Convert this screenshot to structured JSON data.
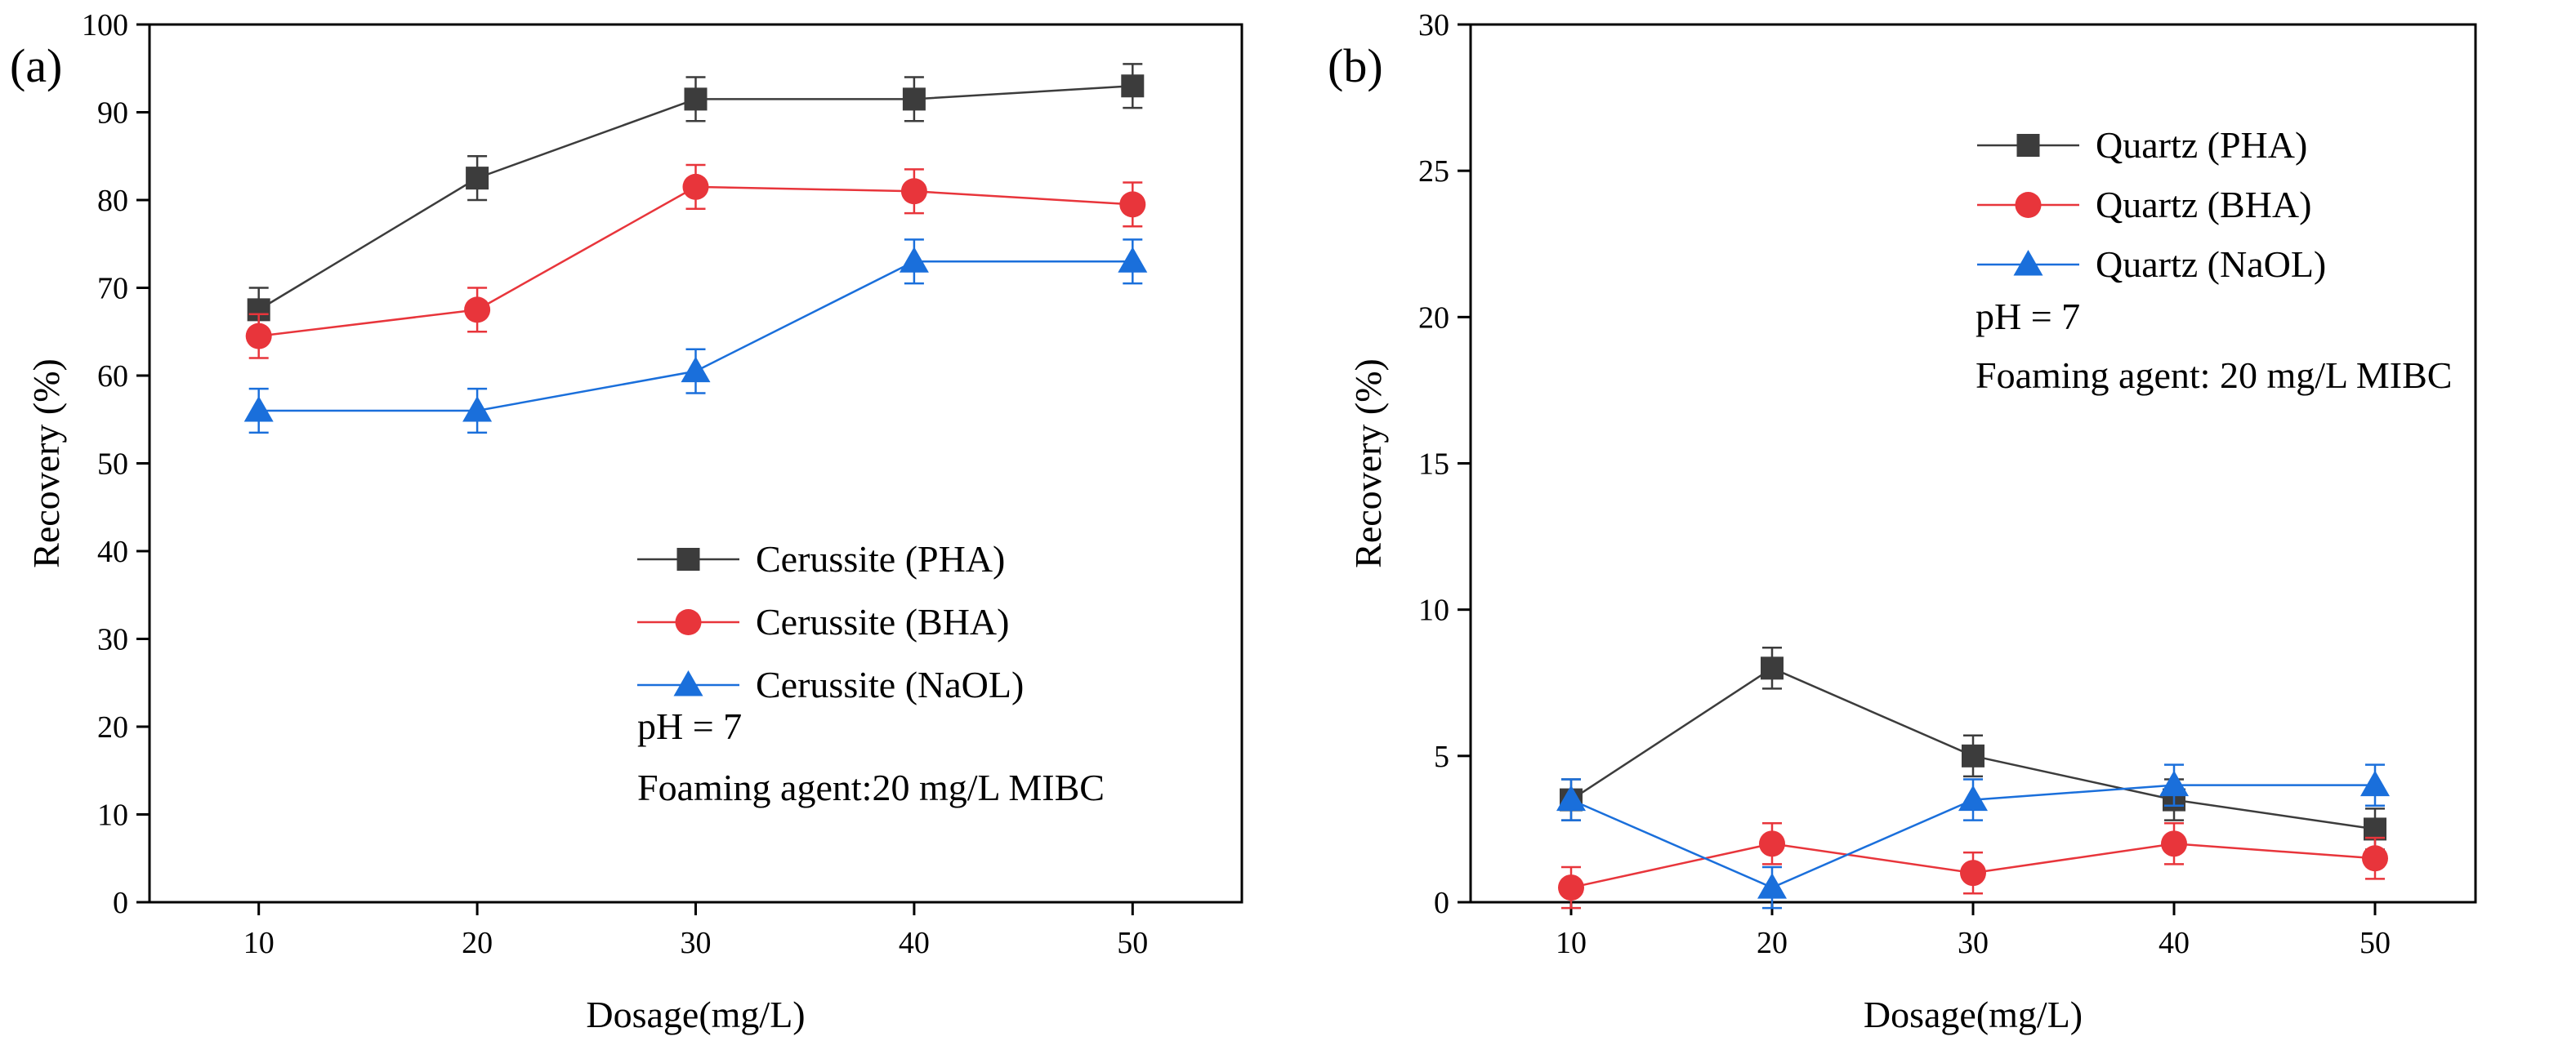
{
  "chart_data": [
    {
      "type": "line",
      "panel_label": "(a)",
      "xlabel": "Dosage(mg/L)",
      "ylabel": "Recovery (%)",
      "xlim": [
        5,
        55
      ],
      "ylim": [
        0,
        100
      ],
      "xticks": [
        10,
        20,
        30,
        40,
        50
      ],
      "yticks": [
        0,
        10,
        20,
        30,
        40,
        50,
        60,
        70,
        80,
        90,
        100
      ],
      "grid": false,
      "legend_position": "center-right",
      "annotations": [
        "pH = 7",
        "Foaming agent:20 mg/L MIBC"
      ],
      "x": [
        10,
        20,
        30,
        40,
        50
      ],
      "series": [
        {
          "name": "Cerussite (PHA)",
          "color": "#3c3c3c",
          "marker": "square",
          "values": [
            67.5,
            82.5,
            91.5,
            91.5,
            93.0
          ],
          "errors": [
            2.5,
            2.5,
            2.5,
            2.5,
            2.5
          ]
        },
        {
          "name": "Cerussite (BHA)",
          "color": "#e8353b",
          "marker": "circle",
          "values": [
            64.5,
            67.5,
            81.5,
            81.0,
            79.5
          ],
          "errors": [
            2.5,
            2.5,
            2.5,
            2.5,
            2.5
          ]
        },
        {
          "name": "Cerussite (NaOL)",
          "color": "#1a6fdb",
          "marker": "triangle",
          "values": [
            56.0,
            56.0,
            60.5,
            73.0,
            73.0
          ],
          "errors": [
            2.5,
            2.5,
            2.5,
            2.5,
            2.5
          ]
        }
      ]
    },
    {
      "type": "line",
      "panel_label": "(b)",
      "xlabel": "Dosage(mg/L)",
      "ylabel": "Recovery (%)",
      "xlim": [
        5,
        55
      ],
      "ylim": [
        0,
        30
      ],
      "xticks": [
        10,
        20,
        30,
        40,
        50
      ],
      "yticks": [
        0,
        5,
        10,
        15,
        20,
        25,
        30
      ],
      "grid": false,
      "legend_position": "top-right",
      "annotations": [
        "pH = 7",
        "Foaming agent: 20 mg/L MIBC"
      ],
      "x": [
        10,
        20,
        30,
        40,
        50
      ],
      "series": [
        {
          "name": "Quartz (PHA)",
          "color": "#3c3c3c",
          "marker": "square",
          "values": [
            3.5,
            8.0,
            5.0,
            3.5,
            2.5
          ],
          "errors": [
            0.7,
            0.7,
            0.7,
            0.7,
            0.7
          ]
        },
        {
          "name": "Quartz (BHA)",
          "color": "#e8353b",
          "marker": "circle",
          "values": [
            0.5,
            2.0,
            1.0,
            2.0,
            1.5
          ],
          "errors": [
            0.7,
            0.7,
            0.7,
            0.7,
            0.7
          ]
        },
        {
          "name": "Quartz (NaOL)",
          "color": "#1a6fdb",
          "marker": "triangle",
          "values": [
            3.5,
            0.5,
            3.5,
            4.0,
            4.0
          ],
          "errors": [
            0.7,
            0.7,
            0.7,
            0.7,
            0.7
          ]
        }
      ]
    }
  ]
}
